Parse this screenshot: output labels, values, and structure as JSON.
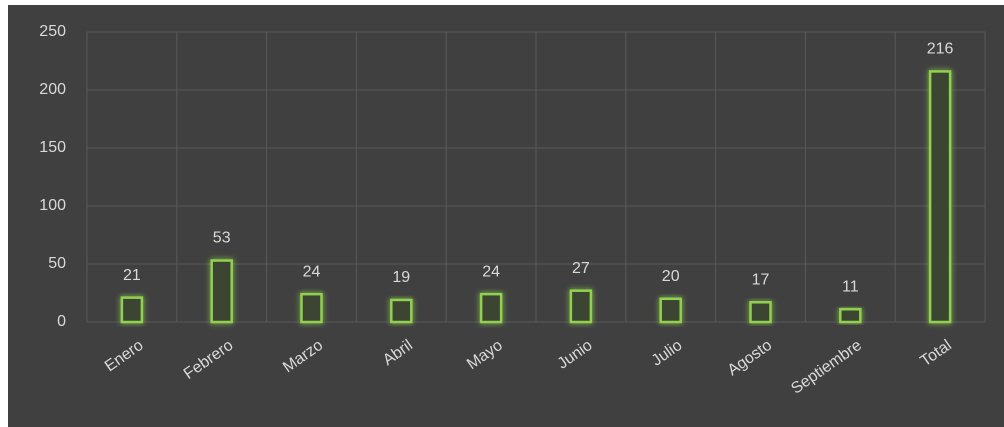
{
  "chart_data": {
    "type": "bar",
    "categories": [
      "Enero",
      "Febrero",
      "Marzo",
      "Abril",
      "Mayo",
      "Junio",
      "Julio",
      "Agosto",
      "Septiembre",
      "Total"
    ],
    "values": [
      21,
      53,
      24,
      19,
      24,
      27,
      20,
      17,
      11,
      216
    ],
    "color": "#92d050",
    "ylim": [
      0,
      250
    ],
    "yticks": [
      0,
      50,
      100,
      150,
      200,
      250
    ],
    "grid": true
  }
}
